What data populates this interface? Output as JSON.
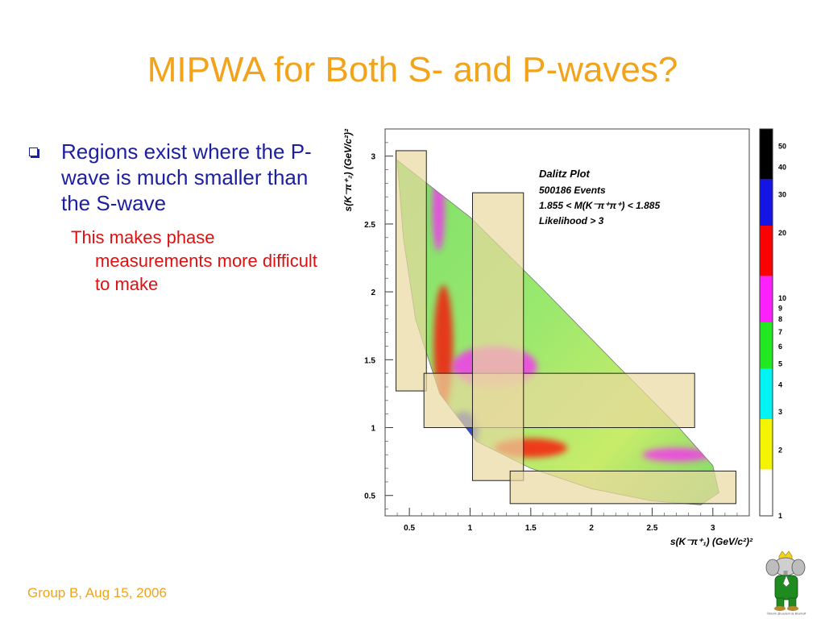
{
  "slide": {
    "title": "MIPWA for Both S- and P-waves?",
    "bullet": "Regions exist where the P-wave is much smaller than the S-wave",
    "subbullet": "This makes phase measurements more difficult to make",
    "footer": "Group B, Aug 15, 2006",
    "mascot_caption": "©Brunh @Laurent de Brunhoff"
  },
  "chart_data": {
    "type": "heatmap",
    "title": "Dalitz Plot",
    "annotations": [
      "500186 Events",
      "1.855 < M(K⁻π⁺π⁺) < 1.885",
      "Likelihood > 3"
    ],
    "xlabel": "s(K⁻π⁺₁)  (GeV/c²)²",
    "ylabel": "s(K⁻π⁺₂)  (GeV/c²)²",
    "xlim": [
      0.3,
      3.3
    ],
    "ylim": [
      0.35,
      3.2
    ],
    "xticks": [
      "0.5",
      "1",
      "1.5",
      "2",
      "2.5",
      "3"
    ],
    "yticks": [
      "0.5",
      "1",
      "1.5",
      "2",
      "2.5",
      "3"
    ],
    "colorbar": {
      "labels": [
        "1",
        "2",
        "3",
        "4",
        "5",
        "6",
        "7",
        "8",
        "9",
        "10",
        "20",
        "30",
        "40",
        "50"
      ],
      "band_colors": [
        "#ffffff",
        "#f4f400",
        "#00f4f4",
        "#22e822",
        "#ff20ff",
        "#ff0000",
        "#1414e6",
        "#000000"
      ]
    },
    "boundary": [
      [
        0.4,
        2.97
      ],
      [
        1.0,
        2.55
      ],
      [
        1.6,
        2.02
      ],
      [
        2.2,
        1.47
      ],
      [
        2.7,
        1.02
      ],
      [
        3.0,
        0.72
      ],
      [
        3.05,
        0.52
      ],
      [
        2.9,
        0.43
      ],
      [
        2.5,
        0.46
      ],
      [
        2.0,
        0.55
      ],
      [
        1.5,
        0.7
      ],
      [
        1.05,
        0.9
      ],
      [
        0.75,
        1.25
      ],
      [
        0.55,
        1.8
      ],
      [
        0.45,
        2.4
      ],
      [
        0.4,
        2.97
      ]
    ],
    "regions": [
      {
        "x": [
          0.39,
          0.64
        ],
        "y": [
          1.27,
          3.04
        ]
      },
      {
        "x": [
          0.62,
          2.85
        ],
        "y": [
          1.0,
          1.4
        ]
      },
      {
        "x": [
          1.02,
          1.44
        ],
        "y": [
          0.61,
          2.73
        ]
      },
      {
        "x": [
          1.33,
          3.19
        ],
        "y": [
          0.44,
          0.68
        ]
      }
    ],
    "density": [
      {
        "x": 0.78,
        "y": 1.6,
        "rx": 0.08,
        "ry": 0.45,
        "color": "#ff0000"
      },
      {
        "x": 0.95,
        "y": 0.98,
        "rx": 0.12,
        "ry": 0.14,
        "color": "#1414e6"
      },
      {
        "x": 1.5,
        "y": 0.85,
        "rx": 0.3,
        "ry": 0.07,
        "color": "#ff0000"
      },
      {
        "x": 2.7,
        "y": 0.8,
        "rx": 0.28,
        "ry": 0.05,
        "color": "#ff20ff"
      },
      {
        "x": 0.74,
        "y": 2.6,
        "rx": 0.05,
        "ry": 0.3,
        "color": "#ff20ff"
      },
      {
        "x": 1.2,
        "y": 1.45,
        "rx": 0.35,
        "ry": 0.15,
        "color": "#ff20ff"
      }
    ]
  }
}
